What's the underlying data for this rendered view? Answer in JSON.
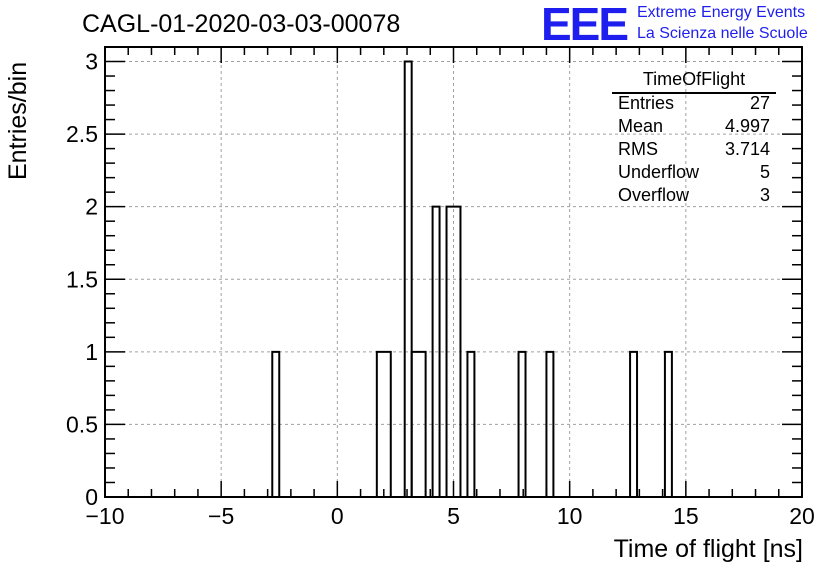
{
  "title": "CAGL-01-2020-03-03-00078",
  "logo": {
    "mark": "EEE",
    "line1": "Extreme Energy Events",
    "line2": "La Scienza nelle Scuole",
    "color": "#1e1eee"
  },
  "stats": {
    "title": "TimeOfFlight",
    "rows": [
      {
        "key": "Entries",
        "value": "27"
      },
      {
        "key": "Mean",
        "value": "4.997"
      },
      {
        "key": "RMS",
        "value": "3.714"
      },
      {
        "key": "Underflow",
        "value": "5"
      },
      {
        "key": "Overflow",
        "value": "3"
      }
    ]
  },
  "chart_data": {
    "type": "bar",
    "histogram": true,
    "title": "CAGL-01-2020-03-03-00078",
    "xlabel": "Time of flight [ns]",
    "ylabel": "Entries/bin",
    "xlim": [
      -10,
      20
    ],
    "ylim": [
      0,
      3.1
    ],
    "bin_width": 0.3,
    "x_ticks": [
      -10,
      -5,
      0,
      5,
      10,
      15,
      20
    ],
    "x_tick_labels": [
      "−10",
      "−5",
      "0",
      "5",
      "10",
      "15",
      "20"
    ],
    "y_ticks": [
      0,
      0.5,
      1,
      1.5,
      2,
      2.5,
      3
    ],
    "y_tick_labels": [
      "0",
      "0.5",
      "1",
      "1.5",
      "2",
      "2.5",
      "3"
    ],
    "grid": true,
    "bins": [
      {
        "x0": -2.8,
        "x1": -2.5,
        "count": 1
      },
      {
        "x0": 1.7,
        "x1": 2.3,
        "count": 1
      },
      {
        "x0": 2.9,
        "x1": 3.2,
        "count": 3
      },
      {
        "x0": 3.2,
        "x1": 3.8,
        "count": 1
      },
      {
        "x0": 4.1,
        "x1": 4.4,
        "count": 2
      },
      {
        "x0": 4.7,
        "x1": 5.3,
        "count": 2
      },
      {
        "x0": 5.6,
        "x1": 5.9,
        "count": 1
      },
      {
        "x0": 7.8,
        "x1": 8.1,
        "count": 1
      },
      {
        "x0": 9.0,
        "x1": 9.3,
        "count": 1
      },
      {
        "x0": 12.6,
        "x1": 12.9,
        "count": 1
      },
      {
        "x0": 14.1,
        "x1": 14.4,
        "count": 1
      }
    ]
  }
}
